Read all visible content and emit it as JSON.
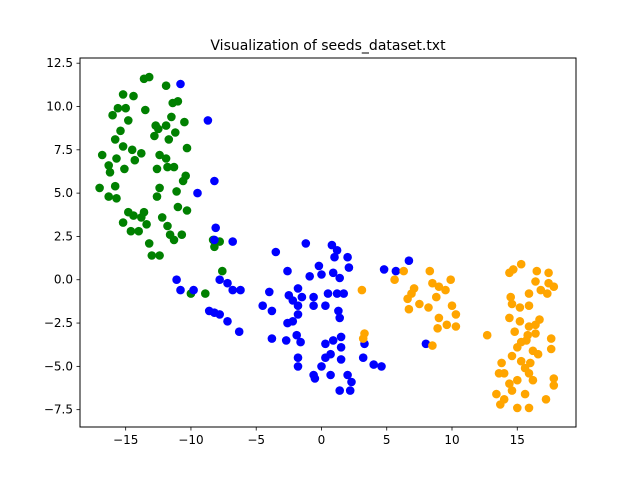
{
  "chart_data": {
    "type": "scatter",
    "title": "Visualization of seeds_dataset.txt",
    "xlabel": "",
    "ylabel": "",
    "xlim": [
      -18.5,
      19.5
    ],
    "ylim": [
      -8.5,
      12.8
    ],
    "xticks": [
      -15,
      -10,
      -5,
      0,
      5,
      10,
      15
    ],
    "xtick_labels": [
      "−15",
      "−10",
      "−5",
      "0",
      "5",
      "10",
      "15"
    ],
    "yticks": [
      -7.5,
      -5.0,
      -2.5,
      0.0,
      2.5,
      5.0,
      7.5,
      10.0,
      12.5
    ],
    "ytick_labels": [
      "−7.5",
      "−5.0",
      "−2.5",
      "0.0",
      "2.5",
      "5.0",
      "7.5",
      "10.0",
      "12.5"
    ],
    "grid": false,
    "series": [
      {
        "color": "#008000",
        "points": [
          [
            -13.6,
            11.6
          ],
          [
            -13.2,
            11.7
          ],
          [
            -11.9,
            11.2
          ],
          [
            -11.4,
            10.2
          ],
          [
            -11.0,
            10.3
          ],
          [
            -14.4,
            10.6
          ],
          [
            -15.2,
            10.7
          ],
          [
            -15.6,
            9.9
          ],
          [
            -15.0,
            9.9
          ],
          [
            -13.5,
            9.8
          ],
          [
            -16.0,
            9.5
          ],
          [
            -14.8,
            9.2
          ],
          [
            -11.5,
            9.4
          ],
          [
            -12.7,
            8.9
          ],
          [
            -11.9,
            8.9
          ],
          [
            -10.5,
            9.1
          ],
          [
            -15.4,
            8.6
          ],
          [
            -12.5,
            8.7
          ],
          [
            -11.2,
            8.5
          ],
          [
            -15.8,
            8.1
          ],
          [
            -11.7,
            8.1
          ],
          [
            -12.8,
            8.3
          ],
          [
            -14.5,
            7.5
          ],
          [
            -15.2,
            7.7
          ],
          [
            -13.8,
            7.3
          ],
          [
            -12.4,
            7.2
          ],
          [
            -11.9,
            7.0
          ],
          [
            -10.3,
            7.6
          ],
          [
            -16.8,
            7.2
          ],
          [
            -15.7,
            7.0
          ],
          [
            -14.3,
            6.9
          ],
          [
            -16.3,
            6.6
          ],
          [
            -11.8,
            6.5
          ],
          [
            -11.3,
            6.5
          ],
          [
            -16.2,
            6.2
          ],
          [
            -15.1,
            6.4
          ],
          [
            -12.6,
            6.4
          ],
          [
            -10.4,
            6.0
          ],
          [
            -10.6,
            5.7
          ],
          [
            -15.8,
            5.4
          ],
          [
            -12.4,
            5.3
          ],
          [
            -17.0,
            5.3
          ],
          [
            -12.6,
            4.8
          ],
          [
            -11.1,
            5.1
          ],
          [
            -16.3,
            4.8
          ],
          [
            -15.7,
            4.7
          ],
          [
            -10.3,
            4.0
          ],
          [
            -14.8,
            3.9
          ],
          [
            -13.6,
            3.9
          ],
          [
            -11.0,
            4.2
          ],
          [
            -14.4,
            3.7
          ],
          [
            -15.2,
            3.3
          ],
          [
            -13.8,
            3.6
          ],
          [
            -12.2,
            3.6
          ],
          [
            -13.4,
            3.2
          ],
          [
            -11.8,
            3.1
          ],
          [
            -14.6,
            2.8
          ],
          [
            -14.0,
            2.8
          ],
          [
            -11.6,
            2.6
          ],
          [
            -10.7,
            2.6
          ],
          [
            -11.3,
            2.3
          ],
          [
            -13.2,
            2.1
          ],
          [
            -8.3,
            2.3
          ],
          [
            -7.8,
            2.2
          ],
          [
            -12.4,
            1.4
          ],
          [
            -13.0,
            1.4
          ],
          [
            -8.2,
            1.9
          ],
          [
            -7.6,
            0.5
          ],
          [
            -8.9,
            -0.8
          ],
          [
            -10.0,
            -0.8
          ]
        ]
      },
      {
        "color": "#0000ff",
        "points": [
          [
            -10.8,
            11.3
          ],
          [
            -8.7,
            9.2
          ],
          [
            -8.2,
            5.7
          ],
          [
            -9.5,
            5.0
          ],
          [
            -8.1,
            3.0
          ],
          [
            -8.2,
            2.3
          ],
          [
            -6.8,
            2.2
          ],
          [
            -3.5,
            1.6
          ],
          [
            -11.1,
            0.0
          ],
          [
            -10.8,
            -0.6
          ],
          [
            -9.8,
            -0.6
          ],
          [
            -7.8,
            0.0
          ],
          [
            -7.2,
            -0.2
          ],
          [
            -6.8,
            -0.6
          ],
          [
            -6.2,
            -0.6
          ],
          [
            -8.6,
            -1.8
          ],
          [
            -8.2,
            -1.9
          ],
          [
            -7.8,
            -2.0
          ],
          [
            -7.2,
            -2.4
          ],
          [
            -6.3,
            -3.0
          ],
          [
            1.2,
            1.7
          ],
          [
            -1.2,
            2.1
          ],
          [
            0.8,
            2.0
          ],
          [
            -2.6,
            0.5
          ],
          [
            -0.2,
            0.8
          ],
          [
            1.0,
            1.3
          ],
          [
            2.0,
            1.3
          ],
          [
            -0.9,
            0.2
          ],
          [
            0.9,
            0.4
          ],
          [
            0.0,
            0.3
          ],
          [
            2.1,
            0.7
          ],
          [
            1.4,
            0.1
          ],
          [
            -4.0,
            -0.7
          ],
          [
            -2.5,
            -0.9
          ],
          [
            -1.8,
            -0.5
          ],
          [
            -1.5,
            -1.0
          ],
          [
            -0.6,
            -1.0
          ],
          [
            0.5,
            -0.8
          ],
          [
            1.2,
            -0.8
          ],
          [
            1.7,
            -0.8
          ],
          [
            -4.5,
            -1.5
          ],
          [
            -2.2,
            -1.2
          ],
          [
            -1.8,
            -1.5
          ],
          [
            -0.6,
            -1.5
          ],
          [
            0.3,
            -1.5
          ],
          [
            1.3,
            -1.8
          ],
          [
            -3.8,
            -1.8
          ],
          [
            -1.8,
            -2.0
          ],
          [
            -2.2,
            -2.4
          ],
          [
            1.4,
            -2.2
          ],
          [
            -2.6,
            -2.5
          ],
          [
            -3.8,
            -3.4
          ],
          [
            -2.7,
            -3.5
          ],
          [
            -1.9,
            -3.2
          ],
          [
            0.3,
            -3.7
          ],
          [
            -1.6,
            -3.6
          ],
          [
            0.9,
            -3.5
          ],
          [
            1.5,
            -3.3
          ],
          [
            1.5,
            -3.9
          ],
          [
            3.3,
            -3.7
          ],
          [
            -1.8,
            -4.5
          ],
          [
            0.3,
            -4.5
          ],
          [
            1.5,
            -4.6
          ],
          [
            3.2,
            -4.5
          ],
          [
            -1.8,
            -5.0
          ],
          [
            0.0,
            -5.0
          ],
          [
            0.7,
            -4.3
          ],
          [
            4.0,
            -4.9
          ],
          [
            4.6,
            -5.0
          ],
          [
            -0.6,
            -5.5
          ],
          [
            -0.5,
            -5.7
          ],
          [
            0.7,
            -5.5
          ],
          [
            2.0,
            -5.5
          ],
          [
            2.3,
            -5.9
          ],
          [
            1.4,
            -6.4
          ],
          [
            2.2,
            -6.4
          ],
          [
            4.8,
            0.6
          ],
          [
            5.7,
            0.5
          ],
          [
            6.7,
            1.1
          ],
          [
            8.0,
            -3.7
          ]
        ]
      },
      {
        "color": "#ffa500",
        "points": [
          [
            6.3,
            0.5
          ],
          [
            5.6,
            0.0
          ],
          [
            8.3,
            0.5
          ],
          [
            9.9,
            0.0
          ],
          [
            3.1,
            -0.6
          ],
          [
            7.1,
            -0.5
          ],
          [
            6.9,
            -0.8
          ],
          [
            8.5,
            -0.2
          ],
          [
            9.0,
            -0.4
          ],
          [
            9.5,
            -0.6
          ],
          [
            6.6,
            -1.1
          ],
          [
            8.8,
            -1.0
          ],
          [
            7.5,
            -1.4
          ],
          [
            10.0,
            -1.5
          ],
          [
            6.7,
            -1.7
          ],
          [
            8.2,
            -1.6
          ],
          [
            9.0,
            -2.2
          ],
          [
            10.3,
            -2.0
          ],
          [
            9.6,
            -2.6
          ],
          [
            8.9,
            -2.8
          ],
          [
            10.3,
            -2.7
          ],
          [
            3.3,
            -3.1
          ],
          [
            3.2,
            -3.4
          ],
          [
            8.5,
            -3.8
          ],
          [
            12.7,
            -3.2
          ],
          [
            14.4,
            0.4
          ],
          [
            15.3,
            0.9
          ],
          [
            14.7,
            0.6
          ],
          [
            16.5,
            0.5
          ],
          [
            17.4,
            0.4
          ],
          [
            16.4,
            -0.1
          ],
          [
            17.4,
            -0.2
          ],
          [
            17.8,
            -0.4
          ],
          [
            14.5,
            -1.0
          ],
          [
            16.8,
            -0.6
          ],
          [
            15.9,
            -0.8
          ],
          [
            17.3,
            -0.8
          ],
          [
            14.6,
            -1.4
          ],
          [
            15.2,
            -1.6
          ],
          [
            15.9,
            -1.5
          ],
          [
            14.4,
            -2.2
          ],
          [
            15.2,
            -2.4
          ],
          [
            16.7,
            -2.3
          ],
          [
            15.9,
            -2.7
          ],
          [
            16.4,
            -2.6
          ],
          [
            14.8,
            -3.0
          ],
          [
            15.8,
            -3.2
          ],
          [
            16.4,
            -3.1
          ],
          [
            17.6,
            -3.4
          ],
          [
            15.3,
            -3.6
          ],
          [
            15.7,
            -3.5
          ],
          [
            15.0,
            -3.9
          ],
          [
            16.2,
            -4.1
          ],
          [
            17.6,
            -4.0
          ],
          [
            14.6,
            -4.4
          ],
          [
            16.6,
            -4.3
          ],
          [
            15.3,
            -4.7
          ],
          [
            13.8,
            -4.8
          ],
          [
            16.0,
            -4.8
          ],
          [
            15.6,
            -5.1
          ],
          [
            13.6,
            -5.4
          ],
          [
            14.0,
            -5.4
          ],
          [
            15.9,
            -5.4
          ],
          [
            15.0,
            -5.8
          ],
          [
            14.4,
            -6.0
          ],
          [
            16.2,
            -5.8
          ],
          [
            17.8,
            -5.7
          ],
          [
            17.8,
            -6.1
          ],
          [
            13.4,
            -6.6
          ],
          [
            14.6,
            -6.4
          ],
          [
            15.6,
            -6.6
          ],
          [
            14.0,
            -6.9
          ],
          [
            17.2,
            -6.9
          ],
          [
            13.7,
            -7.2
          ],
          [
            15.0,
            -7.4
          ],
          [
            15.9,
            -7.4
          ]
        ]
      }
    ]
  }
}
